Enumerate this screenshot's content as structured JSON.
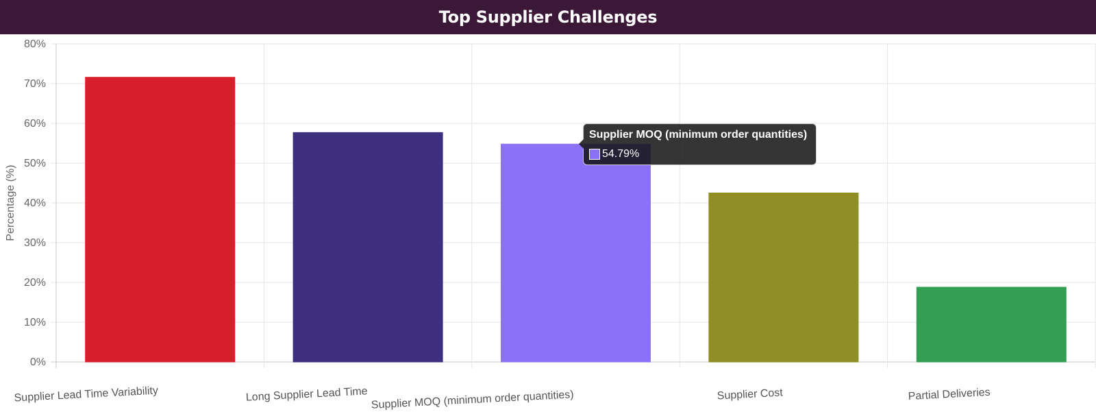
{
  "title": "Top Supplier Challenges",
  "tooltip": {
    "title": "Supplier MOQ (minimum order quantities)",
    "value": "54.79%",
    "color": "#8b70f8"
  },
  "chart_data": {
    "type": "bar",
    "title": "Top Supplier Challenges",
    "xlabel": "",
    "ylabel": "Percentage (%)",
    "categories": [
      "Supplier Lead Time Variability",
      "Long Supplier Lead Time",
      "Supplier MOQ (minimum order quantities)",
      "Supplier Cost",
      "Partial Deliveries"
    ],
    "values": [
      71.6,
      57.7,
      54.79,
      42.5,
      18.8
    ],
    "colors": [
      "#d7202b",
      "#3d2f7e",
      "#8b70f8",
      "#8f8f26",
      "#339f54"
    ],
    "ylim": [
      0,
      80
    ],
    "yticks": [
      "0%",
      "10%",
      "20%",
      "30%",
      "40%",
      "50%",
      "60%",
      "70%",
      "80%"
    ],
    "grid": true,
    "legend": "none"
  }
}
